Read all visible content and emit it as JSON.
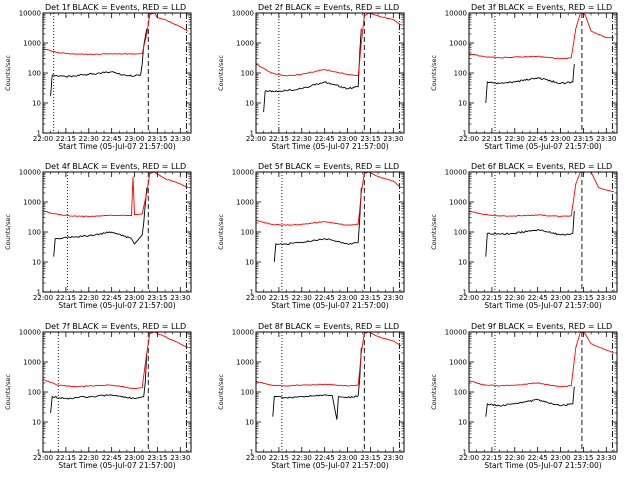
{
  "colors": {
    "events": "#000000",
    "lld": "#ff0000",
    "axes": "#000000",
    "background": "#ffffff"
  },
  "chart_data": [
    {
      "type": "line",
      "title": "Det 1f BLACK = Events, RED = LLD",
      "xlabel": "Start Time (05-Jul-07 21:57:00)",
      "ylabel": "Counts/sec",
      "y_scale": "log",
      "ylim": [
        1,
        10000
      ],
      "x_ticks": [
        "22:00",
        "22:15",
        "22:30",
        "22:45",
        "23:00",
        "23:15",
        "23:30"
      ],
      "y_ticks": [
        "1",
        "10",
        "100",
        "1000",
        "10000"
      ],
      "series": [
        {
          "name": "Events",
          "color": "#000000",
          "x": [
            "22:05",
            "22:06",
            "22:15",
            "22:30",
            "22:45",
            "22:55",
            "23:04",
            "23:05",
            "23:06",
            "23:08"
          ],
          "values": [
            17,
            85,
            75,
            90,
            110,
            80,
            85,
            200,
            800,
            3000
          ]
        },
        {
          "name": "LLD",
          "color": "#ff0000",
          "x": [
            "22:00",
            "22:10",
            "22:20",
            "22:30",
            "22:45",
            "23:00",
            "23:05",
            "23:08",
            "23:10",
            "23:13",
            "23:15",
            "23:20",
            "23:30",
            "23:35"
          ],
          "values": [
            650,
            480,
            430,
            420,
            440,
            430,
            440,
            2000,
            9000,
            10000,
            7000,
            6000,
            3500,
            2500
          ]
        }
      ],
      "vlines": [
        {
          "x": "22:07",
          "style": "dotted"
        },
        {
          "x": "23:09",
          "style": "dashed"
        },
        {
          "x": "23:34",
          "style": "dashdot"
        }
      ]
    },
    {
      "type": "line",
      "title": "Det 2f BLACK = Events, RED = LLD",
      "xlabel": "Start Time (05-Jul-07 21:57:00)",
      "ylabel": "Counts/sec",
      "y_scale": "log",
      "ylim": [
        1,
        10000
      ],
      "x_ticks": [
        "22:00",
        "22:15",
        "22:30",
        "22:45",
        "23:00",
        "23:15",
        "23:30"
      ],
      "y_ticks": [
        "1",
        "10",
        "100",
        "1000",
        "10000"
      ],
      "series": [
        {
          "name": "Events",
          "color": "#000000",
          "x": [
            "22:05",
            "22:06",
            "22:15",
            "22:30",
            "22:45",
            "23:00",
            "23:07",
            "23:08",
            "23:09"
          ],
          "values": [
            5,
            25,
            25,
            30,
            50,
            30,
            35,
            500,
            3000
          ]
        },
        {
          "name": "LLD",
          "color": "#ff0000",
          "x": [
            "22:00",
            "22:10",
            "22:20",
            "22:30",
            "22:45",
            "23:00",
            "23:07",
            "23:09",
            "23:11",
            "23:14",
            "23:20",
            "23:30",
            "23:35"
          ],
          "values": [
            200,
            100,
            80,
            90,
            130,
            90,
            80,
            1000,
            8000,
            10000,
            8000,
            6000,
            4000
          ]
        }
      ],
      "vlines": [
        {
          "x": "22:15",
          "style": "dotted"
        },
        {
          "x": "23:11",
          "style": "dashed"
        },
        {
          "x": "23:34",
          "style": "dashdot"
        }
      ]
    },
    {
      "type": "line",
      "title": "Det 3f BLACK = Events, RED = LLD",
      "xlabel": "Start Time (05-Jul-07 21:57:00)",
      "ylabel": "Counts/sec",
      "y_scale": "log",
      "ylim": [
        1,
        10000
      ],
      "x_ticks": [
        "22:00",
        "22:15",
        "22:30",
        "22:45",
        "23:00",
        "23:15",
        "23:30"
      ],
      "y_ticks": [
        "1",
        "10",
        "100",
        "1000",
        "10000"
      ],
      "series": [
        {
          "name": "Events",
          "color": "#000000",
          "x": [
            "22:11",
            "22:12",
            "22:20",
            "22:30",
            "22:45",
            "23:00",
            "23:08",
            "23:09"
          ],
          "values": [
            10,
            50,
            45,
            50,
            70,
            45,
            50,
            200
          ]
        },
        {
          "name": "LLD",
          "color": "#ff0000",
          "x": [
            "22:00",
            "22:10",
            "22:20",
            "22:30",
            "22:45",
            "23:00",
            "23:07",
            "23:10",
            "23:13",
            "23:16",
            "23:20",
            "23:30",
            "23:35"
          ],
          "values": [
            450,
            350,
            320,
            340,
            360,
            300,
            320,
            3000,
            10000,
            9000,
            2500,
            1500,
            1500
          ]
        }
      ],
      "vlines": [
        {
          "x": "22:17",
          "style": "dotted"
        },
        {
          "x": "23:14",
          "style": "dashed"
        },
        {
          "x": "23:34",
          "style": "dashdot"
        }
      ]
    },
    {
      "type": "line",
      "title": "Det 4f BLACK = Events, RED = LLD",
      "xlabel": "Start Time (05-Jul-07 21:57:00)",
      "ylabel": "Counts/sec",
      "y_scale": "log",
      "ylim": [
        1,
        10000
      ],
      "x_ticks": [
        "22:00",
        "22:15",
        "22:30",
        "22:45",
        "23:00",
        "23:15",
        "23:30"
      ],
      "y_ticks": [
        "1",
        "10",
        "100",
        "1000",
        "10000"
      ],
      "series": [
        {
          "name": "Events",
          "color": "#000000",
          "x": [
            "22:07",
            "22:08",
            "22:15",
            "22:30",
            "22:45",
            "22:58",
            "23:00",
            "23:05",
            "23:06",
            "23:08"
          ],
          "values": [
            15,
            60,
            65,
            75,
            100,
            60,
            40,
            80,
            200,
            3000
          ]
        },
        {
          "name": "LLD",
          "color": "#ff0000",
          "x": [
            "22:00",
            "22:10",
            "22:20",
            "22:30",
            "22:45",
            "22:58",
            "22:59",
            "23:00",
            "23:05",
            "23:08",
            "23:10",
            "23:13",
            "23:20",
            "23:30",
            "23:35"
          ],
          "values": [
            500,
            380,
            340,
            330,
            360,
            350,
            7000,
            380,
            400,
            2000,
            9000,
            10000,
            6000,
            4000,
            3000
          ]
        }
      ],
      "vlines": [
        {
          "x": "22:16",
          "style": "dotted"
        },
        {
          "x": "23:09",
          "style": "dashed"
        },
        {
          "x": "23:34",
          "style": "dashdot"
        }
      ]
    },
    {
      "type": "line",
      "title": "Det 5f BLACK = Events, RED = LLD",
      "xlabel": "Start Time (05-Jul-07 21:57:00)",
      "ylabel": "Counts/sec",
      "y_scale": "log",
      "ylim": [
        1,
        10000
      ],
      "x_ticks": [
        "22:00",
        "22:15",
        "22:30",
        "22:45",
        "23:00",
        "23:15",
        "23:30"
      ],
      "y_ticks": [
        "1",
        "10",
        "100",
        "1000",
        "10000"
      ],
      "series": [
        {
          "name": "Events",
          "color": "#000000",
          "x": [
            "22:12",
            "22:13",
            "22:20",
            "22:30",
            "22:45",
            "23:00",
            "23:07",
            "23:08",
            "23:09"
          ],
          "values": [
            10,
            40,
            40,
            45,
            60,
            40,
            45,
            300,
            3000
          ]
        },
        {
          "name": "LLD",
          "color": "#ff0000",
          "x": [
            "22:00",
            "22:10",
            "22:20",
            "22:30",
            "22:45",
            "23:00",
            "23:07",
            "23:09",
            "23:11",
            "23:14",
            "23:20",
            "23:30",
            "23:35"
          ],
          "values": [
            250,
            180,
            170,
            180,
            220,
            170,
            180,
            2000,
            9000,
            10000,
            7000,
            5000,
            3000
          ]
        }
      ],
      "vlines": [
        {
          "x": "22:17",
          "style": "dotted"
        },
        {
          "x": "23:11",
          "style": "dashed"
        },
        {
          "x": "23:34",
          "style": "dashdot"
        }
      ]
    },
    {
      "type": "line",
      "title": "Det 6f BLACK = Events, RED = LLD",
      "xlabel": "Start Time (05-Jul-07 21:57:00)",
      "ylabel": "Counts/sec",
      "y_scale": "log",
      "ylim": [
        1,
        10000
      ],
      "x_ticks": [
        "22:00",
        "22:15",
        "22:30",
        "22:45",
        "23:00",
        "23:15",
        "23:30"
      ],
      "y_ticks": [
        "1",
        "10",
        "100",
        "1000",
        "10000"
      ],
      "series": [
        {
          "name": "Events",
          "color": "#000000",
          "x": [
            "22:11",
            "22:12",
            "22:20",
            "22:30",
            "22:45",
            "23:00",
            "23:08",
            "23:09"
          ],
          "values": [
            15,
            90,
            85,
            90,
            120,
            80,
            90,
            500
          ]
        },
        {
          "name": "LLD",
          "color": "#ff0000",
          "x": [
            "22:00",
            "22:10",
            "22:20",
            "22:30",
            "22:45",
            "23:00",
            "23:07",
            "23:10",
            "23:13",
            "23:20",
            "23:25",
            "23:30",
            "23:35"
          ],
          "values": [
            500,
            380,
            350,
            340,
            370,
            330,
            340,
            4000,
            10000,
            10000,
            3000,
            2500,
            2200
          ]
        }
      ],
      "vlines": [
        {
          "x": "22:17",
          "style": "dotted"
        },
        {
          "x": "23:14",
          "style": "dashed"
        },
        {
          "x": "23:34",
          "style": "dashdot"
        }
      ]
    },
    {
      "type": "line",
      "title": "Det 7f BLACK = Events, RED = LLD",
      "xlabel": "Start Time (05-Jul-07 21:57:00)",
      "ylabel": "Counts/sec",
      "y_scale": "log",
      "ylim": [
        1,
        10000
      ],
      "x_ticks": [
        "22:00",
        "22:15",
        "22:30",
        "22:45",
        "23:00",
        "23:15",
        "23:30"
      ],
      "y_ticks": [
        "1",
        "10",
        "100",
        "1000",
        "10000"
      ],
      "series": [
        {
          "name": "Events",
          "color": "#000000",
          "x": [
            "22:05",
            "22:06",
            "22:15",
            "22:30",
            "22:45",
            "23:00",
            "23:06",
            "23:07",
            "23:08"
          ],
          "values": [
            20,
            70,
            60,
            70,
            80,
            60,
            70,
            200,
            2000
          ]
        },
        {
          "name": "LLD",
          "color": "#ff0000",
          "x": [
            "22:00",
            "22:10",
            "22:20",
            "22:30",
            "22:45",
            "23:00",
            "23:05",
            "23:08",
            "23:10",
            "23:13",
            "23:20",
            "23:30",
            "23:35"
          ],
          "values": [
            260,
            170,
            150,
            160,
            170,
            130,
            140,
            2000,
            9000,
            10000,
            7000,
            4000,
            3000
          ]
        }
      ],
      "vlines": [
        {
          "x": "22:10",
          "style": "dotted"
        },
        {
          "x": "23:09",
          "style": "dashed"
        },
        {
          "x": "23:34",
          "style": "dashdot"
        }
      ]
    },
    {
      "type": "line",
      "title": "Det 8f BLACK = Events, RED = LLD",
      "xlabel": "Start Time (05-Jul-07 21:57:00)",
      "ylabel": "Counts/sec",
      "y_scale": "log",
      "ylim": [
        1,
        10000
      ],
      "x_ticks": [
        "22:00",
        "22:15",
        "22:30",
        "22:45",
        "23:00",
        "23:15",
        "23:30"
      ],
      "y_ticks": [
        "1",
        "10",
        "100",
        "1000",
        "10000"
      ],
      "series": [
        {
          "name": "Events",
          "color": "#000000",
          "x": [
            "22:11",
            "22:12",
            "22:20",
            "22:30",
            "22:45",
            "22:50",
            "22:53",
            "22:54",
            "23:00",
            "23:07",
            "23:08",
            "23:09"
          ],
          "values": [
            15,
            70,
            65,
            70,
            80,
            75,
            12,
            70,
            65,
            75,
            300,
            3000
          ]
        },
        {
          "name": "LLD",
          "color": "#ff0000",
          "x": [
            "22:00",
            "22:10",
            "22:20",
            "22:30",
            "22:45",
            "23:00",
            "23:07",
            "23:09",
            "23:11",
            "23:14",
            "23:20",
            "23:30",
            "23:35"
          ],
          "values": [
            230,
            170,
            160,
            170,
            180,
            160,
            170,
            2000,
            9000,
            10000,
            7000,
            5000,
            3500
          ]
        }
      ],
      "vlines": [
        {
          "x": "22:17",
          "style": "dotted"
        },
        {
          "x": "23:11",
          "style": "dashed"
        },
        {
          "x": "23:34",
          "style": "dashdot"
        }
      ]
    },
    {
      "type": "line",
      "title": "Det 9f BLACK = Events, RED = LLD",
      "xlabel": "Start Time (05-Jul-07 21:57:00)",
      "ylabel": "Counts/sec",
      "y_scale": "log",
      "ylim": [
        1,
        10000
      ],
      "x_ticks": [
        "22:00",
        "22:15",
        "22:30",
        "22:45",
        "23:00",
        "23:15",
        "23:30"
      ],
      "y_ticks": [
        "1",
        "10",
        "100",
        "1000",
        "10000"
      ],
      "series": [
        {
          "name": "Events",
          "color": "#000000",
          "x": [
            "22:11",
            "22:12",
            "22:20",
            "22:30",
            "22:45",
            "23:00",
            "23:08",
            "23:09"
          ],
          "values": [
            15,
            40,
            35,
            40,
            55,
            35,
            40,
            150
          ]
        },
        {
          "name": "LLD",
          "color": "#ff0000",
          "x": [
            "22:00",
            "22:10",
            "22:20",
            "22:30",
            "22:45",
            "23:00",
            "23:07",
            "23:10",
            "23:13",
            "23:16",
            "23:20",
            "23:30",
            "23:35"
          ],
          "values": [
            240,
            170,
            160,
            170,
            200,
            150,
            160,
            3000,
            10000,
            9000,
            4000,
            2500,
            2000
          ]
        }
      ],
      "vlines": [
        {
          "x": "22:17",
          "style": "dotted"
        },
        {
          "x": "23:14",
          "style": "dashed"
        },
        {
          "x": "23:34",
          "style": "dashdot"
        }
      ]
    }
  ]
}
